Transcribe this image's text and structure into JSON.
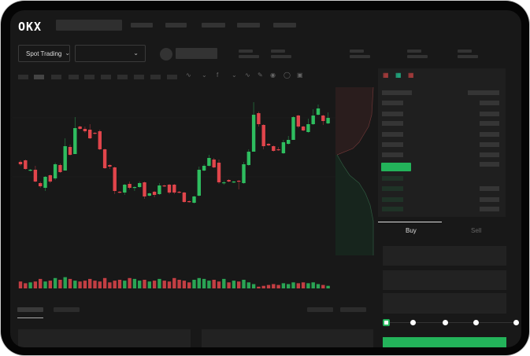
{
  "header": {
    "logo": "OKX"
  },
  "toolbar": {
    "market_dropdown": "Spot Trading",
    "pair_dropdown": ""
  },
  "order_panel": {
    "tabs": [
      {
        "label": "Buy",
        "active": true
      },
      {
        "label": "Sell",
        "active": false
      }
    ],
    "slider_percent": 0,
    "slider_stops": 5
  },
  "colors": {
    "up": "#2ebd5f",
    "down": "#e0454b",
    "accent": "#23b35a",
    "background": "#181818"
  },
  "chart_data": {
    "type": "candlestick",
    "candles": [
      [
        95,
        97,
        90,
        92
      ],
      [
        97,
        98,
        85,
        86
      ],
      [
        84,
        86,
        83,
        85
      ],
      [
        85,
        90,
        69,
        70
      ],
      [
        68,
        70,
        62,
        64
      ],
      [
        62,
        77,
        58,
        76
      ],
      [
        78,
        79,
        68,
        70
      ],
      [
        74,
        94,
        72,
        92
      ],
      [
        91,
        93,
        81,
        82
      ],
      [
        84,
        125,
        84,
        115
      ],
      [
        114,
        117,
        103,
        104
      ],
      [
        105,
        152,
        105,
        138
      ],
      [
        140,
        141,
        136,
        137
      ],
      [
        137,
        140,
        132,
        134
      ],
      [
        136,
        143,
        124,
        125
      ],
      [
        132,
        133,
        130,
        131
      ],
      [
        134,
        136,
        110,
        111
      ],
      [
        111,
        112,
        86,
        87
      ],
      [
        91,
        92,
        86,
        89
      ],
      [
        88,
        89,
        54,
        58
      ],
      [
        57,
        58,
        55,
        56
      ],
      [
        56,
        67,
        53,
        66
      ],
      [
        67,
        70,
        60,
        62
      ],
      [
        62,
        64,
        58,
        63
      ],
      [
        63,
        70,
        62,
        68
      ],
      [
        69,
        70,
        48,
        51
      ],
      [
        52,
        56,
        51,
        55
      ],
      [
        57,
        58,
        50,
        53
      ],
      [
        54,
        68,
        53,
        65
      ],
      [
        65,
        66,
        63,
        64
      ],
      [
        66,
        67,
        54,
        56
      ],
      [
        66,
        67,
        54,
        56
      ],
      [
        57,
        58,
        55,
        56
      ],
      [
        56,
        57,
        43,
        44
      ],
      [
        45,
        46,
        43,
        44
      ],
      [
        43,
        52,
        42,
        51
      ],
      [
        52,
        89,
        51,
        85
      ],
      [
        84,
        92,
        83,
        90
      ],
      [
        90,
        104,
        89,
        100
      ],
      [
        98,
        100,
        87,
        88
      ],
      [
        94,
        98,
        67,
        69
      ],
      [
        68,
        71,
        66,
        69
      ],
      [
        72,
        73,
        69,
        70
      ],
      [
        69,
        71,
        68,
        70
      ],
      [
        71,
        72,
        60,
        70
      ],
      [
        68,
        95,
        67,
        92
      ],
      [
        91,
        111,
        90,
        108
      ],
      [
        108,
        171,
        108,
        155
      ],
      [
        157,
        159,
        140,
        143
      ],
      [
        142,
        143,
        111,
        115
      ],
      [
        118,
        119,
        115,
        116
      ],
      [
        115,
        116,
        108,
        109
      ],
      [
        111,
        114,
        109,
        110
      ],
      [
        106,
        123,
        105,
        120
      ],
      [
        118,
        128,
        117,
        123
      ],
      [
        123,
        153,
        123,
        152
      ],
      [
        154,
        155,
        138,
        140
      ],
      [
        140,
        141,
        134,
        135
      ],
      [
        133,
        150,
        132,
        143
      ],
      [
        143,
        162,
        142,
        154
      ],
      [
        155,
        168,
        154,
        163
      ],
      [
        154,
        155,
        142,
        147
      ],
      [
        144,
        158,
        143,
        151
      ]
    ],
    "volume": [
      8,
      6,
      7,
      8,
      11,
      8,
      9,
      12,
      10,
      13,
      11,
      9,
      8,
      9,
      11,
      9,
      8,
      12,
      7,
      9,
      10,
      9,
      12,
      11,
      9,
      10,
      8,
      9,
      11,
      9,
      8,
      12,
      10,
      9,
      7,
      10,
      12,
      11,
      9,
      10,
      8,
      11,
      7,
      9,
      8,
      10,
      7,
      5,
      2,
      3,
      4,
      5,
      4,
      6,
      5,
      7,
      6,
      7,
      6,
      7,
      5,
      4,
      3
    ],
    "depth": {
      "asks": "top-left",
      "bids": "bottom-left"
    }
  }
}
